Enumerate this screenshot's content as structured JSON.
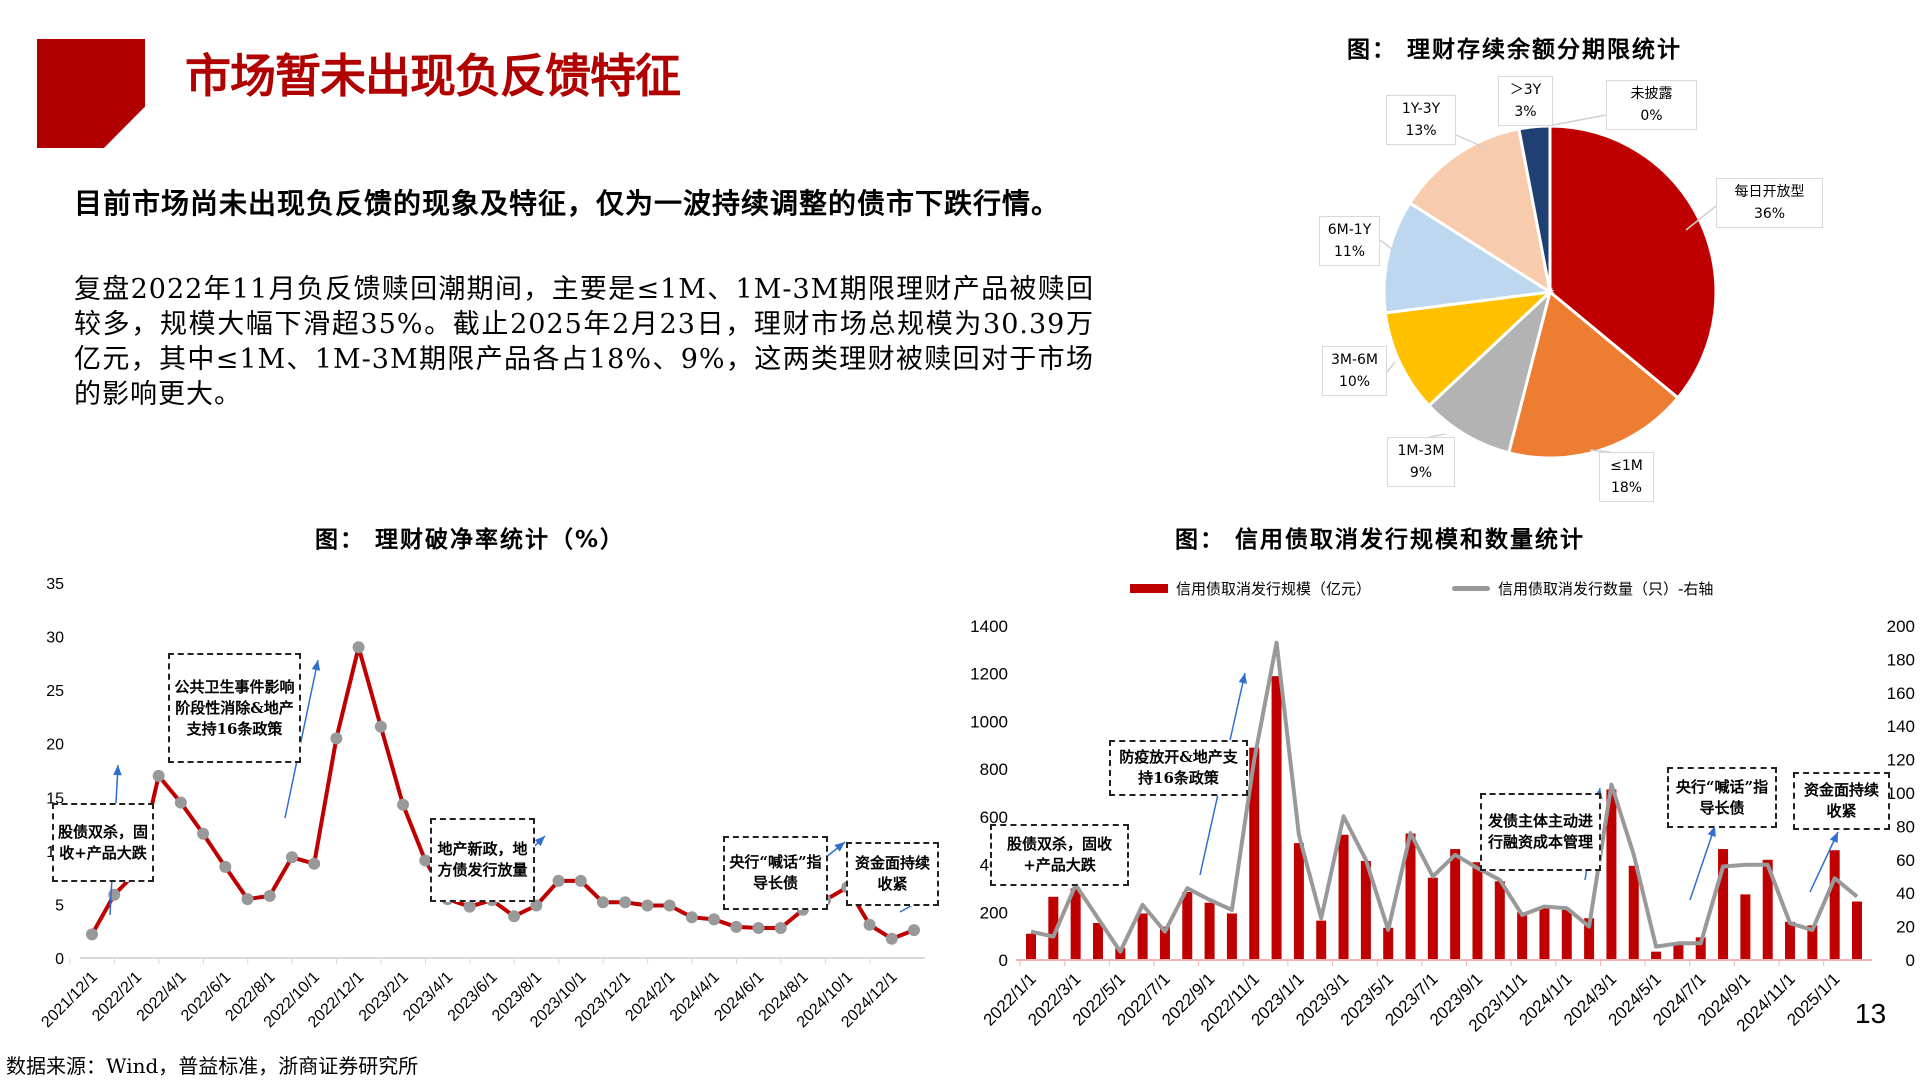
{
  "header": {
    "title": "市场暂未出现负反馈特征"
  },
  "text": {
    "lead": "目前市场尚未出现负反馈的现象及特征，仅为一波持续调整的债市下跌行情。",
    "body": "复盘2022年11月负反馈赎回潮期间，主要是≤1M、1M-3M期限理财产品被赎回较多，规模大幅下滑超35%。截止2025年2月23日，理财市场总规模为30.39万亿元，其中≤1M、1M-3M期限产品各占18%、9%，这两类理财被赎回对于市场的影响更大。"
  },
  "footer": {
    "source": "数据来源：Wind，普益标准，浙商证券研究所",
    "page": "13"
  },
  "chart_data": [
    {
      "type": "pie",
      "title": "图： 理财存续余额分期限统计",
      "slices": [
        {
          "name": "每日开放型",
          "value": 36,
          "label": "36%",
          "color": "#c00000"
        },
        {
          "name": "≤1M",
          "value": 18,
          "label": "18%",
          "color": "#ed7d31"
        },
        {
          "name": "1M-3M",
          "value": 9,
          "label": "9%",
          "color": "#b3b3b3"
        },
        {
          "name": "3M-6M",
          "value": 10,
          "label": "10%",
          "color": "#ffc000"
        },
        {
          "name": "6M-1Y",
          "value": 11,
          "label": "11%",
          "color": "#bdd7ee"
        },
        {
          "name": "1Y-3Y",
          "value": 13,
          "label": "13%",
          "color": "#f8cbad"
        },
        {
          "name": "＞3Y",
          "value": 3,
          "label": "3%",
          "color": "#203f72"
        },
        {
          "name": "未披露",
          "value": 0,
          "label": "0%",
          "color": "#7f7f7f"
        }
      ]
    },
    {
      "type": "line",
      "title": "图： 理财破净率统计（%）",
      "ylim": [
        0,
        35
      ],
      "yticks": [
        0,
        5,
        10,
        15,
        20,
        25,
        30,
        35
      ],
      "xticklabels": [
        "2021/12/1",
        "2022/2/1",
        "2022/4/1",
        "2022/6/1",
        "2022/8/1",
        "2022/10/1",
        "2022/12/1",
        "2023/2/1",
        "2023/4/1",
        "2023/6/1",
        "2023/8/1",
        "2023/10/1",
        "2023/12/1",
        "2024/2/1",
        "2024/4/1",
        "2024/6/1",
        "2024/8/1",
        "2024/10/1",
        "2024/12/1"
      ],
      "series": [
        {
          "name": "破净率",
          "color": "#c00000",
          "values": [
            2.2,
            5.9,
            8.0,
            17.0,
            14.5,
            11.6,
            8.5,
            5.5,
            5.8,
            9.4,
            8.8,
            20.5,
            29.0,
            21.6,
            14.3,
            9.1,
            5.5,
            4.8,
            5.4,
            3.9,
            4.9,
            7.2,
            7.2,
            5.2,
            5.2,
            4.9,
            4.9,
            3.8,
            3.6,
            2.9,
            2.8,
            2.8,
            4.5,
            5.4,
            6.6,
            3.1,
            1.8,
            2.6
          ]
        }
      ],
      "annotations": [
        "股债双杀，固收+产品大跌",
        "公共卫生事件影响阶段性消除&地产支持16条政策",
        "地产新政，地方债发行放量",
        "央行“喊话”指导长债",
        "资金面持续收紧"
      ]
    },
    {
      "type": "bar",
      "title": "图： 信用债取消发行规模和数量统计",
      "ylim": [
        0,
        1400
      ],
      "yticks": [
        0,
        200,
        400,
        600,
        800,
        1000,
        1200,
        1400
      ],
      "y2lim": [
        0,
        200
      ],
      "y2ticks": [
        0,
        20,
        40,
        60,
        80,
        100,
        120,
        140,
        160,
        180,
        200
      ],
      "xticklabels": [
        "2022/1/1",
        "2022/3/1",
        "2022/5/1",
        "2022/7/1",
        "2022/9/1",
        "2022/11/1",
        "2023/1/1",
        "2023/3/1",
        "2023/5/1",
        "2023/7/1",
        "2023/9/1",
        "2023/11/1",
        "2024/1/1",
        "2024/3/1",
        "2024/5/1",
        "2024/7/1",
        "2024/9/1",
        "2024/11/1",
        "2025/1/1"
      ],
      "legend_position": "top",
      "series": [
        {
          "name": "信用债取消发行规模（亿元）",
          "type": "bar",
          "color": "#c00000",
          "values": [
            110,
            265,
            300,
            155,
            50,
            195,
            140,
            285,
            240,
            195,
            890,
            1190,
            490,
            165,
            525,
            415,
            135,
            530,
            345,
            465,
            410,
            330,
            200,
            220,
            210,
            175,
            715,
            395,
            35,
            65,
            95,
            465,
            275,
            420,
            160,
            145,
            460,
            245
          ]
        },
        {
          "name": "信用债取消发行数量（只）-右轴",
          "type": "line",
          "axis": "right",
          "color": "#999999",
          "values": [
            17,
            14,
            45,
            25,
            5,
            33,
            17,
            43,
            36,
            30,
            120,
            190,
            75,
            25,
            86,
            60,
            18,
            76,
            50,
            63,
            55,
            48,
            27,
            32,
            31,
            20,
            105,
            63,
            8,
            10,
            10,
            56,
            57,
            57,
            22,
            18,
            49,
            38
          ]
        }
      ],
      "annotations": [
        "股债双杀，固收+产品大跌",
        "防疫放开&地产支持16条政策",
        "发债主体主动进行融资成本管理",
        "央行“喊话”指导长债",
        "资金面持续收紧"
      ]
    }
  ]
}
